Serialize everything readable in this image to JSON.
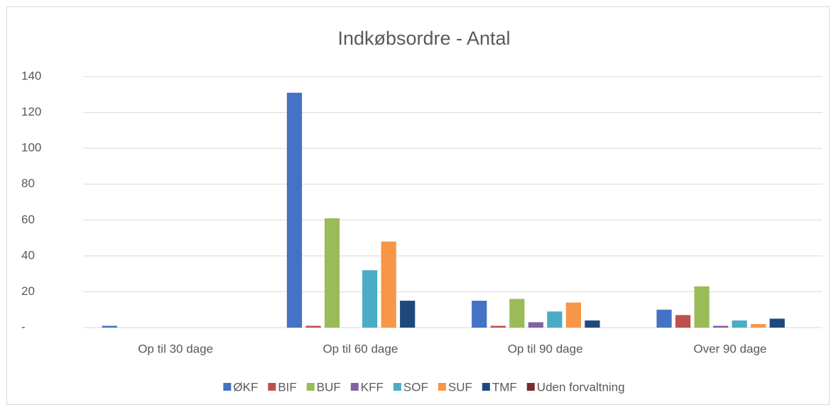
{
  "chart_data": {
    "type": "bar",
    "title": "Indkøbsordre - Antal",
    "categories": [
      "Op til 30 dage",
      "Op til 60 dage",
      "Op til 90 dage",
      "Over 90 dage"
    ],
    "series": [
      {
        "name": "ØKF",
        "color": "#4472c4",
        "values": [
          1,
          131,
          15,
          10
        ]
      },
      {
        "name": "BIF",
        "color": "#c0504d",
        "values": [
          0,
          1,
          1,
          7
        ]
      },
      {
        "name": "BUF",
        "color": "#9bbb59",
        "values": [
          0,
          61,
          16,
          23
        ]
      },
      {
        "name": "KFF",
        "color": "#8064a2",
        "values": [
          0,
          0,
          3,
          1
        ]
      },
      {
        "name": "SOF",
        "color": "#4bacc6",
        "values": [
          0,
          32,
          9,
          4
        ]
      },
      {
        "name": "SUF",
        "color": "#f79646",
        "values": [
          0,
          48,
          14,
          2
        ]
      },
      {
        "name": "TMF",
        "color": "#1f497d",
        "values": [
          0,
          15,
          4,
          5
        ]
      },
      {
        "name": "Uden forvaltning",
        "color": "#7f2a2a",
        "values": [
          0,
          0,
          0,
          0
        ]
      }
    ],
    "ylim": [
      0,
      140
    ],
    "yticks": [
      {
        "value": 0,
        "label": "-"
      },
      20,
      40,
      60,
      80,
      100,
      120,
      140
    ],
    "grid": true,
    "legend": "bottom"
  }
}
